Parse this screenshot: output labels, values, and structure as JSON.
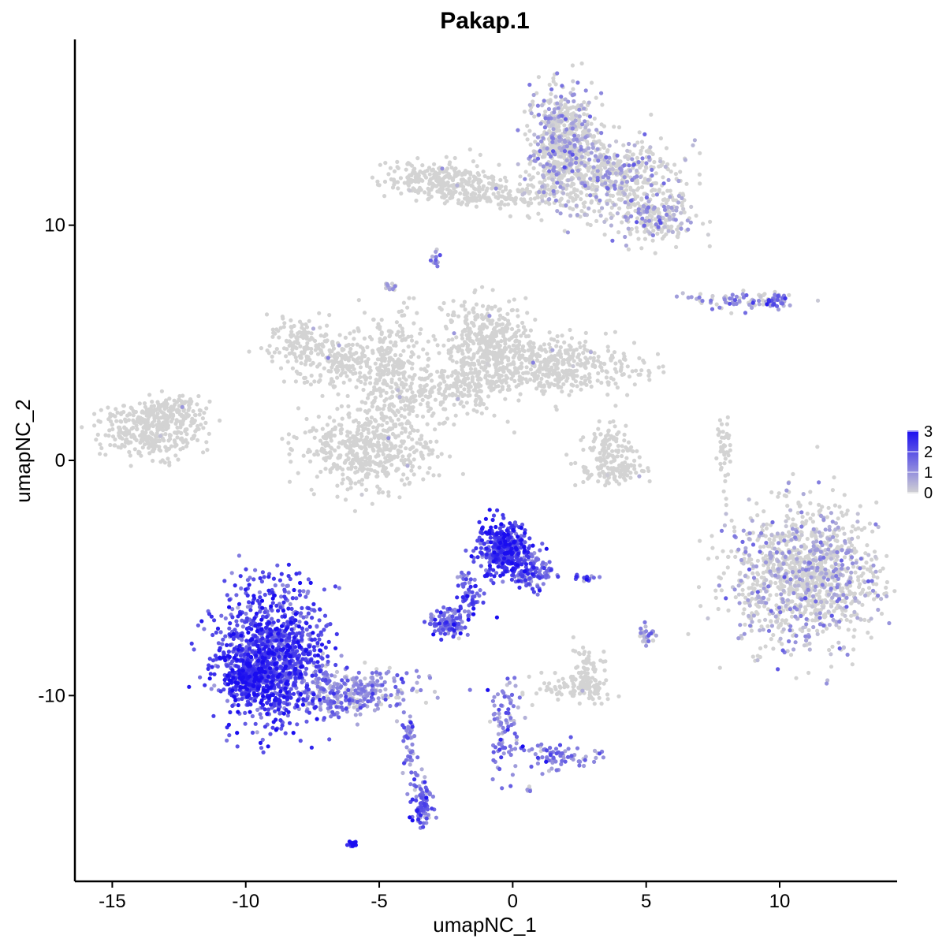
{
  "chart_data": {
    "type": "scatter",
    "title": "Pakap.1",
    "xlabel": "umapNC_1",
    "ylabel": "umapNC_2",
    "xlim": [
      -16.4,
      14.4
    ],
    "ylim": [
      -17.9,
      17.9
    ],
    "x_ticks": [
      -15,
      -10,
      -5,
      0,
      5,
      10
    ],
    "x_tick_labels": [
      "-15",
      "-10",
      "-5",
      "0",
      "5",
      "10"
    ],
    "y_ticks": [
      -10,
      0,
      10
    ],
    "y_tick_labels": [
      "-10",
      "0",
      "10"
    ],
    "grid": false,
    "legend": {
      "position": "right",
      "type": "colorbar",
      "breaks": [
        0,
        1,
        2,
        3
      ],
      "labels": [
        "0",
        "1",
        "2",
        "3"
      ],
      "low_color": "#d3d3d3",
      "high_color": "#1a0df0"
    },
    "point_size": 3,
    "clusters": [
      {
        "cx": 1.9,
        "cy": 13.5,
        "sx": 0.6,
        "sy": 1.1,
        "n": 650,
        "expr": 0.5
      },
      {
        "cx": 3.6,
        "cy": 12.1,
        "sx": 1.3,
        "sy": 0.8,
        "n": 500,
        "expr": 0.4
      },
      {
        "cx": 5.4,
        "cy": 10.4,
        "sx": 0.7,
        "sy": 0.6,
        "n": 220,
        "expr": 0.5
      },
      {
        "cx": -2.8,
        "cy": 11.9,
        "sx": 1.0,
        "sy": 0.4,
        "n": 260,
        "expr": 0.2
      },
      {
        "cx": -0.2,
        "cy": 11.3,
        "sx": 1.2,
        "sy": 0.3,
        "n": 160,
        "expr": 0.2
      },
      {
        "cx": -8.0,
        "cy": 5.1,
        "sx": 0.6,
        "sy": 0.5,
        "n": 120,
        "expr": 0.1
      },
      {
        "cx": -6.5,
        "cy": 4.2,
        "sx": 0.9,
        "sy": 0.6,
        "n": 200,
        "expr": 0.1
      },
      {
        "cx": -4.5,
        "cy": 3.6,
        "sx": 0.6,
        "sy": 1.4,
        "n": 280,
        "expr": 0.15
      },
      {
        "cx": -5.5,
        "cy": 0.5,
        "sx": 1.2,
        "sy": 0.8,
        "n": 500,
        "expr": 0.15
      },
      {
        "cx": -1.0,
        "cy": 5.0,
        "sx": 0.8,
        "sy": 0.9,
        "n": 400,
        "expr": 0.1
      },
      {
        "cx": 1.5,
        "cy": 4.0,
        "sx": 1.6,
        "sy": 0.6,
        "n": 450,
        "expr": 0.1
      },
      {
        "cx": -2.5,
        "cy": 3.0,
        "sx": 1.0,
        "sy": 0.6,
        "n": 200,
        "expr": 0.15
      },
      {
        "cx": -13.5,
        "cy": 1.3,
        "sx": 0.9,
        "sy": 0.6,
        "n": 350,
        "expr": 0.1
      },
      {
        "cx": -12.8,
        "cy": 2.1,
        "sx": 0.6,
        "sy": 0.3,
        "n": 100,
        "expr": 0.1
      },
      {
        "cx": 3.6,
        "cy": 0.6,
        "sx": 0.4,
        "sy": 0.5,
        "n": 100,
        "expr": 0.15
      },
      {
        "cx": 3.7,
        "cy": -0.4,
        "sx": 0.8,
        "sy": 0.3,
        "n": 110,
        "expr": 0.15
      },
      {
        "cx": 8.8,
        "cy": 6.8,
        "sx": 1.0,
        "sy": 0.2,
        "n": 80,
        "expr": 0.8
      },
      {
        "cx": 9.9,
        "cy": 6.8,
        "sx": 0.2,
        "sy": 0.15,
        "n": 30,
        "expr": 1.3
      },
      {
        "cx": 7.9,
        "cy": 0.4,
        "sx": 0.12,
        "sy": 0.7,
        "n": 40,
        "expr": 0.2
      },
      {
        "cx": 10.9,
        "cy": -4.8,
        "sx": 1.4,
        "sy": 1.5,
        "n": 1200,
        "expr": 0.45
      },
      {
        "cx": -0.3,
        "cy": -3.8,
        "sx": 0.5,
        "sy": 0.6,
        "n": 420,
        "expr": 2.2
      },
      {
        "cx": 0.7,
        "cy": -4.7,
        "sx": 0.4,
        "sy": 0.4,
        "n": 100,
        "expr": 1.6
      },
      {
        "cx": -1.6,
        "cy": -5.8,
        "sx": 0.25,
        "sy": 0.7,
        "n": 60,
        "expr": 1.8
      },
      {
        "cx": -2.4,
        "cy": -6.9,
        "sx": 0.35,
        "sy": 0.3,
        "n": 120,
        "expr": 1.6
      },
      {
        "cx": -9.0,
        "cy": -8.3,
        "sx": 1.0,
        "sy": 1.4,
        "n": 1100,
        "expr": 2.1
      },
      {
        "cx": -9.9,
        "cy": -9.3,
        "sx": 0.5,
        "sy": 0.5,
        "n": 250,
        "expr": 2.5
      },
      {
        "cx": -5.9,
        "cy": -9.8,
        "sx": 1.2,
        "sy": 0.5,
        "n": 300,
        "expr": 1.0
      },
      {
        "cx": -3.4,
        "cy": -14.5,
        "sx": 0.2,
        "sy": 0.6,
        "n": 90,
        "expr": 1.5
      },
      {
        "cx": -3.9,
        "cy": -12.1,
        "sx": 0.15,
        "sy": 0.8,
        "n": 40,
        "expr": 1.4
      },
      {
        "cx": -0.3,
        "cy": -11.2,
        "sx": 0.3,
        "sy": 1.0,
        "n": 90,
        "expr": 1.2
      },
      {
        "cx": 1.6,
        "cy": -12.6,
        "sx": 0.7,
        "sy": 0.3,
        "n": 80,
        "expr": 1.2
      },
      {
        "cx": 2.3,
        "cy": -9.6,
        "sx": 0.7,
        "sy": 0.3,
        "n": 110,
        "expr": 0.2
      },
      {
        "cx": 2.9,
        "cy": -8.9,
        "sx": 0.3,
        "sy": 0.6,
        "n": 50,
        "expr": 0.2
      },
      {
        "cx": 5.0,
        "cy": -7.4,
        "sx": 0.2,
        "sy": 0.2,
        "n": 30,
        "expr": 0.8
      },
      {
        "cx": 2.7,
        "cy": -5.0,
        "sx": 0.25,
        "sy": 0.08,
        "n": 15,
        "expr": 1.7
      },
      {
        "cx": -6.0,
        "cy": -16.3,
        "sx": 0.08,
        "sy": 0.06,
        "n": 15,
        "expr": 3.0
      },
      {
        "cx": -2.9,
        "cy": 8.6,
        "sx": 0.1,
        "sy": 0.15,
        "n": 12,
        "expr": 1.2
      },
      {
        "cx": -4.6,
        "cy": 7.4,
        "sx": 0.1,
        "sy": 0.12,
        "n": 12,
        "expr": 1.0
      },
      {
        "cx": 0.6,
        "cy": -14.0,
        "sx": 0.05,
        "sy": 0.05,
        "n": 5,
        "expr": 1.0
      }
    ]
  }
}
